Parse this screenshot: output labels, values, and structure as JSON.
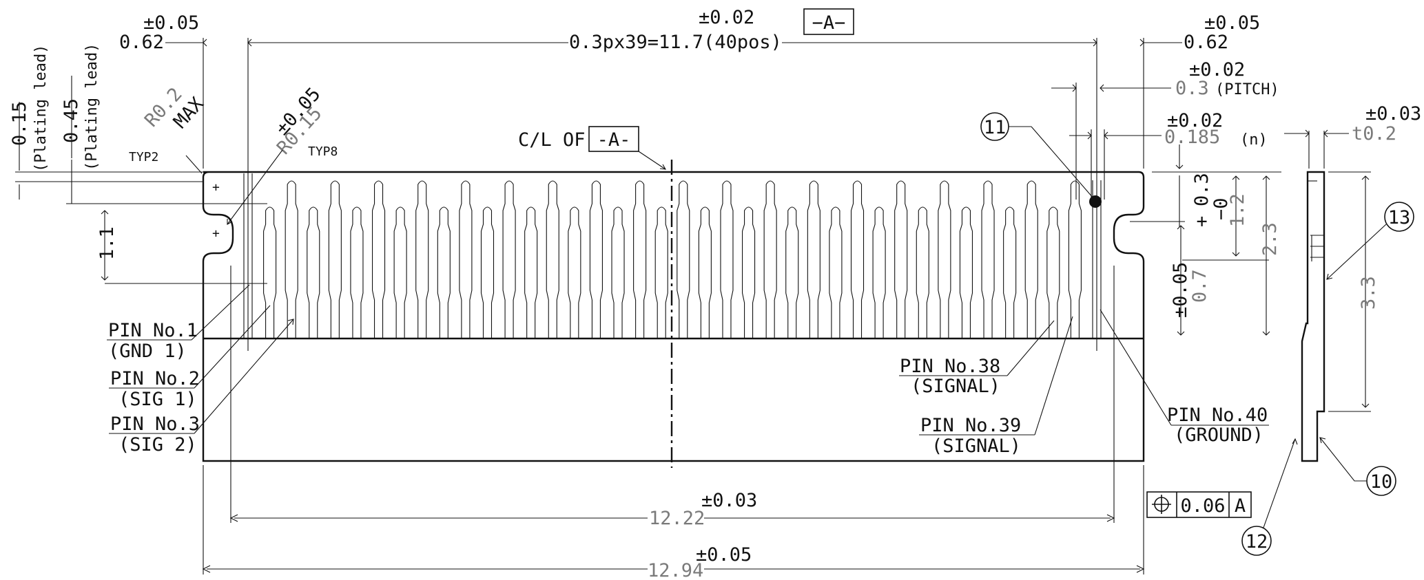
{
  "dimensions": {
    "left_offset": "0.62",
    "left_offset_tol": "±0.05",
    "right_offset": "0.62",
    "right_offset_tol": "±0.05",
    "pitch_total": "0.3px39=11.7(40pos)",
    "pitch_total_tol": "±0.02",
    "datum_a": "A",
    "pitch": "0.3",
    "pitch_note": "(PITCH)",
    "pitch_tol": "±0.02",
    "pad_width": "0.185",
    "pad_width_note": "(n)",
    "pad_width_tol": "±0.02",
    "plating_015": "0.15",
    "plating_045": "0.45",
    "plating_note": "(Plating lead)",
    "r02": "R0.2",
    "r02_max": "MAX",
    "typ2": "TYP2",
    "r015": "R0.15",
    "r015_tol": "±0.05",
    "typ8": "TYP8",
    "h11": "1.1",
    "cl_text": "C/L OF",
    "cl_datum": "-A-",
    "h03": "0.3",
    "h03_plus": "+",
    "h03_minus": "−0",
    "h12": "1.2",
    "h23": "2.3",
    "h07": "0.7",
    "h07_tol": "±0.05",
    "w1222": "12.22",
    "w1222_tol": "±0.03",
    "w1294": "12.94",
    "w1294_tol": "±0.05",
    "pos_tol_value": "0.06",
    "pos_tol_datum": "A",
    "thickness": "t0.2",
    "thickness_tol": "±0.03",
    "h33": "3.3"
  },
  "pins": {
    "pin1": "PIN No.1",
    "pin1_sub": "(GND 1)",
    "pin2": "PIN No.2",
    "pin2_sub": "(SIG 1)",
    "pin3": "PIN No.3",
    "pin3_sub": "(SIG 2)",
    "pin38": "PIN No.38",
    "pin38_sub": "(SIGNAL)",
    "pin39": "PIN No.39",
    "pin39_sub": "(SIGNAL)",
    "pin40": "PIN No.40",
    "pin40_sub": "(GROUND)"
  },
  "balloons": {
    "b10": "10",
    "b11": "11",
    "b12": "12",
    "b13": "13"
  },
  "icons": {
    "position_tolerance": "position-tolerance-icon"
  },
  "colors": {
    "line": "#111111",
    "secondary_text": "#7a7a7a",
    "background": "#ffffff"
  }
}
